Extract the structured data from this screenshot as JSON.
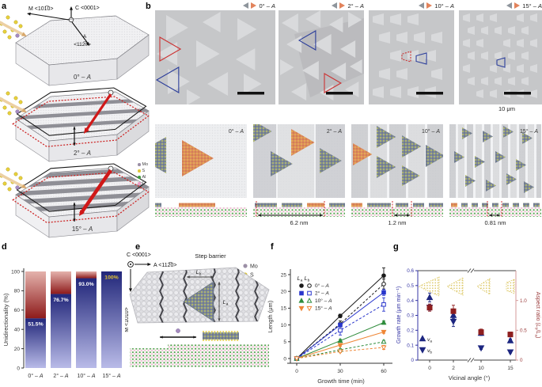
{
  "panel_labels": {
    "a": "a",
    "b": "b",
    "c": "c",
    "d": "d",
    "e": "e",
    "f": "f",
    "g": "g"
  },
  "panel_a": {
    "axis_c": "C <0001>",
    "axis_m": "M <101̅0>",
    "axis_a1": "A",
    "axis_a2": "<112̅0>",
    "crystals": [
      "0° – A",
      "2° – A",
      "15° – A"
    ]
  },
  "panel_b": {
    "titles": [
      "0° – A",
      "2° – A",
      "10° – A",
      "15° – A"
    ],
    "scale_label": "10 μm",
    "outline_colors": {
      "red": "#cc3333",
      "blue": "#2c3e9b"
    }
  },
  "panel_c": {
    "titles": [
      "0° – A",
      "2° – A",
      "10° – A",
      "15° – A"
    ],
    "dims": [
      "",
      "6.2 nm",
      "1.2 nm",
      "0.81 nm"
    ],
    "legend": [
      {
        "name": "Mo",
        "color": "#9b8fa6"
      },
      {
        "name": "S",
        "color": "#e0c83a"
      },
      {
        "name": "Al",
        "color": "#3f9b3f"
      },
      {
        "name": "O",
        "color": "#efa0c8"
      }
    ]
  },
  "panel_e": {
    "axis_c": "C <0001>",
    "axis_a": "A <112̅0>",
    "axis_m": "M <101̅0>",
    "step_barrier": "Step barrier",
    "la": "L_a",
    "lb": "L_b",
    "legend": [
      {
        "name": "Mo",
        "color": "#9b8fa6"
      },
      {
        "name": "S",
        "color": "#e0c83a"
      },
      {
        "name": "Al",
        "color": "#3f9b3f"
      },
      {
        "name": "O",
        "color": "#efa0c8"
      }
    ]
  },
  "chart_data": [
    {
      "id": "d",
      "type": "bar",
      "ylabel": "Unidirectionality (%)",
      "categories": [
        "0° – A",
        "2° – A",
        "10° – A",
        "15° – A"
      ],
      "values": [
        51.5,
        76.7,
        93.0,
        100
      ],
      "labels": [
        "51.5%",
        "76.7%",
        "93.0%",
        "100%"
      ],
      "yticks": [
        0,
        20,
        40,
        60,
        80,
        100
      ],
      "ylim": [
        0,
        100
      ],
      "colors": {
        "blue_bottom": "#b9bbe8",
        "blue_top": "#22277a",
        "red_bottom": "#8e1b1b",
        "red_top": "#e4b2ac",
        "label": "#ffffff",
        "label_100": "#e3c232"
      }
    },
    {
      "id": "f",
      "type": "line",
      "xlabel": "Growth time (min)",
      "ylabel": "Length (μm)",
      "x": [
        0,
        30,
        60
      ],
      "xticks": [
        0,
        30,
        60
      ],
      "yticks": [
        0,
        5,
        10,
        15,
        20,
        25
      ],
      "xlim": [
        -5,
        65
      ],
      "ylim": [
        -1.5,
        27
      ],
      "legend_header": [
        "L_a",
        "L_b"
      ],
      "legend_rows": [
        "0° – A",
        "2° – A",
        "10° – A",
        "15° – A"
      ],
      "series": [
        {
          "label": "0° – A",
          "component": "L_a",
          "marker": "circle",
          "open": false,
          "color": "#1a1a1a",
          "dash": false,
          "values": [
            0,
            12.7,
            24.7
          ],
          "err": [
            0,
            0.5,
            2.3
          ]
        },
        {
          "label": "0° – A",
          "component": "L_b",
          "marker": "circle",
          "open": true,
          "color": "#1a1a1a",
          "dash": true,
          "values": [
            0,
            10.3,
            22.2
          ],
          "err": [
            0,
            0.9,
            1.5
          ]
        },
        {
          "label": "2° – A",
          "component": "L_a",
          "marker": "square",
          "open": false,
          "color": "#2936cc",
          "dash": false,
          "values": [
            0,
            10.0,
            19.7
          ],
          "err": [
            0,
            0.5,
            0.9
          ]
        },
        {
          "label": "2° – A",
          "component": "L_b",
          "marker": "square",
          "open": true,
          "color": "#2936cc",
          "dash": true,
          "values": [
            0,
            8.4,
            16.1
          ],
          "err": [
            0,
            1.4,
            2.0
          ]
        },
        {
          "label": "10° – A",
          "component": "L_a",
          "marker": "triangle-up",
          "open": false,
          "color": "#2f8c3c",
          "dash": false,
          "values": [
            0,
            5.3,
            10.7
          ],
          "err": [
            0,
            0.4,
            0.5
          ]
        },
        {
          "label": "10° – A",
          "component": "L_b",
          "marker": "triangle-up",
          "open": true,
          "color": "#2f8c3c",
          "dash": true,
          "values": [
            0,
            2.6,
            5.0
          ],
          "err": [
            0,
            0.3,
            0.4
          ]
        },
        {
          "label": "15° – A",
          "component": "L_a",
          "marker": "triangle-down",
          "open": false,
          "color": "#ef8636",
          "dash": false,
          "values": [
            0,
            4.0,
            7.9
          ],
          "err": [
            0,
            0.4,
            0.4
          ]
        },
        {
          "label": "15° – A",
          "component": "L_b",
          "marker": "triangle-down",
          "open": true,
          "color": "#ef8636",
          "dash": true,
          "values": [
            0,
            2.1,
            3.3
          ],
          "err": [
            0,
            0.3,
            0.6
          ]
        }
      ]
    },
    {
      "id": "g",
      "type": "scatter",
      "xlabel": "Vicinal angle (°)",
      "ylabel_left": "Growth rate (μm min⁻¹)",
      "ylabel_right": "Aspect ratio (L_b/L_a)",
      "x_categories": [
        "0",
        "2",
        "10",
        "15"
      ],
      "yticks_left": [
        0,
        0.1,
        0.2,
        0.3,
        0.4,
        0.5,
        0.6
      ],
      "yticks_right": [
        0,
        0.5,
        1.0
      ],
      "ylim_left": [
        0,
        0.6
      ],
      "right_to_left_scale": 0.4,
      "axis_colors": {
        "left": "#3434a4",
        "right": "#9b3b3b"
      },
      "series": [
        {
          "name": "v_a",
          "marker": "triangle-up",
          "color": "#1d2680",
          "axis": "left",
          "values": [
            0.42,
            0.3,
            0.18,
            0.13
          ],
          "err": [
            0.03,
            0.02,
            0.015,
            0.012
          ]
        },
        {
          "name": "v_b",
          "marker": "triangle-down",
          "color": "#1d2680",
          "axis": "left",
          "values": [
            0.355,
            0.26,
            0.082,
            0.055
          ],
          "err": [
            0.02,
            0.035,
            0.01,
            0.008
          ]
        },
        {
          "name": "aspect_ratio",
          "marker": "square",
          "color": "#8e1f1f",
          "axis": "right",
          "values": [
            0.88,
            0.82,
            0.47,
            0.43
          ],
          "err": [
            0.06,
            0.1,
            0.05,
            0.04
          ]
        }
      ]
    }
  ]
}
